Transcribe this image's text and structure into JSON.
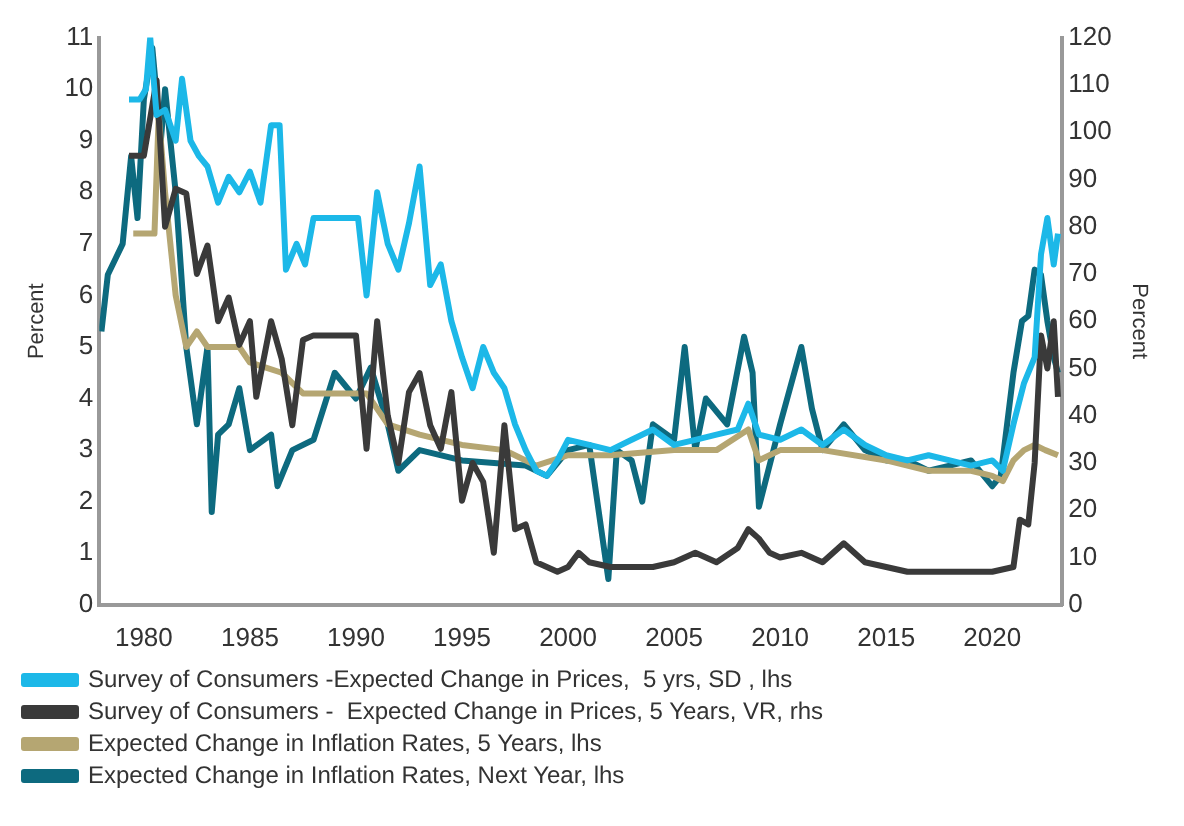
{
  "chart_data": {
    "type": "line",
    "ylabel": "Percent",
    "y2label": "Percent",
    "xlim": [
      1977.9,
      2023.3
    ],
    "xticks": [
      1980,
      1985,
      1990,
      1995,
      2000,
      2005,
      2010,
      2015,
      2020
    ],
    "ylim": [
      0,
      11
    ],
    "yticks": [
      0,
      1,
      2,
      3,
      4,
      5,
      6,
      7,
      8,
      9,
      10,
      11
    ],
    "y2lim": [
      0,
      120
    ],
    "y2ticks": [
      0,
      10,
      20,
      30,
      40,
      50,
      60,
      70,
      80,
      90,
      100,
      110,
      120
    ],
    "grid": false,
    "legend": "bottom",
    "marker": "none",
    "line_style": "solid",
    "series": [
      {
        "name": "Survey of Consumers -Expected Change in Prices,  5 yrs, SD , lhs",
        "color": "#1cb8e8",
        "x": [
          1979.3,
          1979.8,
          1980.1,
          1980.3,
          1980.6,
          1981,
          1981.5,
          1981.8,
          1982.2,
          1982.6,
          1983,
          1983.5,
          1984,
          1984.5,
          1985,
          1985.5,
          1986,
          1986.4,
          1986.7,
          1987.2,
          1987.6,
          1988,
          1990.1,
          1990.5,
          1991,
          1991.5,
          1992,
          1992.5,
          1993,
          1993.5,
          1994,
          1994.5,
          1995,
          1995.5,
          1996,
          1996.5,
          1997,
          1997.5,
          1998,
          1998.5,
          1999,
          1999.5,
          2000,
          2001,
          2002,
          2003,
          2004,
          2005,
          2006,
          2007,
          2008,
          2008.5,
          2009,
          2010,
          2011,
          2012,
          2013,
          2014,
          2015,
          2016,
          2017,
          2018,
          2019,
          2020,
          2020.5,
          2021,
          2021.5,
          2022,
          2022.3,
          2022.6,
          2022.9,
          2023.1
        ],
        "values": [
          9.8,
          9.8,
          10,
          11,
          9.5,
          9.6,
          9,
          10.2,
          9,
          8.7,
          8.5,
          7.8,
          8.3,
          8,
          8.4,
          7.8,
          9.3,
          9.3,
          6.5,
          7,
          6.6,
          7.5,
          7.5,
          6,
          8,
          7,
          6.5,
          7.4,
          8.5,
          6.2,
          6.6,
          5.5,
          4.8,
          4.2,
          5,
          4.5,
          4.2,
          3.5,
          3,
          2.6,
          2.5,
          2.8,
          3.2,
          3.1,
          3.0,
          3.2,
          3.4,
          3.1,
          3.2,
          3.3,
          3.4,
          3.9,
          3.3,
          3.2,
          3.4,
          3.1,
          3.4,
          3.1,
          2.9,
          2.8,
          2.9,
          2.8,
          2.7,
          2.8,
          2.6,
          3.5,
          4.3,
          4.8,
          6.8,
          7.5,
          6.6,
          7.2
        ]
      },
      {
        "name": "Survey of Consumers -  Expected Change in Prices, 5 Years, VR, rhs",
        "color": "#3a3a3a",
        "axis": "y2",
        "x": [
          1979.3,
          1980,
          1980.6,
          1981,
          1981.5,
          1982,
          1982.5,
          1983,
          1983.5,
          1984,
          1984.5,
          1985,
          1985.3,
          1986,
          1986.5,
          1987,
          1987.5,
          1988,
          1990,
          1990.5,
          1991,
          1991.5,
          1992,
          1992.5,
          1993,
          1993.5,
          1994,
          1994.5,
          1995,
          1995.5,
          1996,
          1996.5,
          1997,
          1997.5,
          1998,
          1998.5,
          1999,
          1999.5,
          2000,
          2000.5,
          2001,
          2002,
          2003,
          2004,
          2005,
          2006,
          2007,
          2008,
          2008.5,
          2009,
          2009.5,
          2010,
          2011,
          2012,
          2013,
          2014,
          2015,
          2016,
          2017,
          2018,
          2019,
          2020,
          2021,
          2021.3,
          2021.7,
          2022,
          2022.3,
          2022.6,
          2022.9,
          2023.1
        ],
        "values": [
          95,
          95,
          111,
          80,
          88,
          87,
          70,
          76,
          60,
          65,
          55,
          60,
          44,
          60,
          52,
          38,
          56,
          57,
          57,
          33,
          60,
          40,
          30,
          45,
          49,
          38,
          33,
          45,
          22,
          30,
          26,
          11,
          38,
          16,
          17,
          9,
          8,
          7,
          8,
          11,
          9,
          8,
          8,
          8,
          9,
          11,
          9,
          12,
          16,
          14,
          11,
          10,
          11,
          9,
          13,
          9,
          8,
          7,
          7,
          7,
          7,
          7,
          8,
          18,
          17,
          30,
          57,
          50,
          60,
          44
        ]
      },
      {
        "name": "Expected Change in Inflation Rates, 5 Years, lhs",
        "color": "#b5a672",
        "x": [
          1979.5,
          1980.5,
          1980.7,
          1981,
          1981.5,
          1982,
          1982.5,
          1983,
          1984.5,
          1985,
          1986.5,
          1987.5,
          1990.5,
          1991.5,
          1993,
          1995,
          1997,
          1998.5,
          2000,
          2002,
          2005,
          2007,
          2008.5,
          2009,
          2010,
          2012,
          2015,
          2017,
          2019,
          2020,
          2020.5,
          2021,
          2021.5,
          2022,
          2022.5,
          2023.1
        ],
        "values": [
          7.2,
          7.2,
          9.5,
          8,
          6,
          5,
          5.3,
          5,
          5,
          4.7,
          4.5,
          4.1,
          4.1,
          3.5,
          3.3,
          3.1,
          3,
          2.7,
          2.9,
          2.9,
          3,
          3,
          3.4,
          2.8,
          3,
          3,
          2.8,
          2.6,
          2.6,
          2.5,
          2.4,
          2.8,
          3,
          3.1,
          3.0,
          2.9
        ]
      },
      {
        "name": "Expected Change in Inflation Rates, Next Year, lhs",
        "color": "#0d6a7f",
        "x": [
          1978,
          1978.3,
          1979,
          1979.4,
          1979.7,
          1980,
          1980.4,
          1980.8,
          1981,
          1981.5,
          1982,
          1982.5,
          1983,
          1983.2,
          1983.5,
          1984,
          1984.5,
          1985,
          1986,
          1986.3,
          1987,
          1988,
          1989,
          1990,
          1990.7,
          1991.5,
          1992,
          1993,
          1995,
          1998,
          1999,
          2000,
          2001,
          2001.9,
          2002.3,
          2003,
          2003.5,
          2004,
          2005,
          2005.5,
          2006,
          2006.5,
          2007.5,
          2008.3,
          2008.7,
          2009,
          2010,
          2011,
          2011.5,
          2012,
          2013,
          2014,
          2015,
          2016,
          2017,
          2018,
          2019,
          2020,
          2020.4,
          2021,
          2021.4,
          2021.7,
          2022,
          2022.3,
          2022.6,
          2022.9,
          2023.1
        ],
        "values": [
          5.3,
          6.4,
          7,
          8.7,
          7.5,
          9.8,
          10.8,
          9,
          10,
          8,
          5,
          3.5,
          5,
          1.8,
          3.3,
          3.5,
          4.2,
          3,
          3.3,
          2.3,
          3,
          3.2,
          4.5,
          4,
          4.6,
          3.5,
          2.6,
          3,
          2.8,
          2.7,
          2.5,
          3,
          3.1,
          0.5,
          3,
          2.8,
          2,
          3.5,
          3.2,
          5,
          3,
          4,
          3.5,
          5.2,
          4.5,
          1.9,
          3.5,
          5,
          3.8,
          3,
          3.5,
          3,
          2.8,
          2.8,
          2.6,
          2.7,
          2.8,
          2.3,
          2.5,
          4.5,
          5.5,
          5.6,
          6.5,
          6.4,
          5.5,
          4.8,
          4.5
        ]
      }
    ]
  }
}
